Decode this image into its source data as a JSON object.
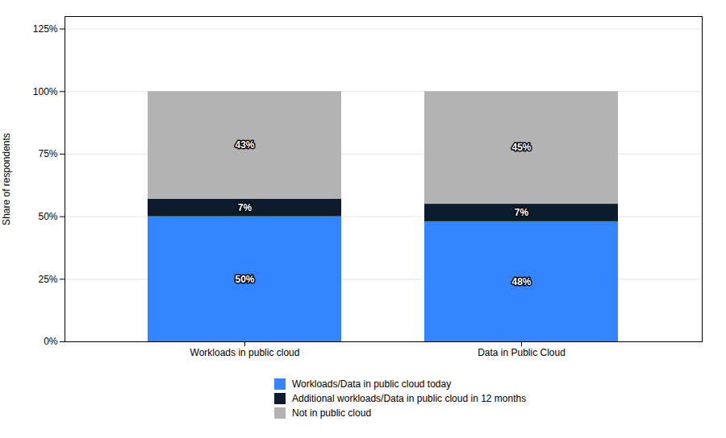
{
  "chart_data": {
    "type": "bar",
    "stacked": true,
    "categories": [
      "Workloads in public cloud",
      "Data in Public Cloud"
    ],
    "series": [
      {
        "name": "Workloads/Data in public cloud today",
        "color": "#3385ff",
        "values": [
          50,
          48
        ],
        "value_labels": [
          "50%",
          "48%"
        ]
      },
      {
        "name": "Additional workloads/Data in public cloud in 12 months",
        "color": "#0d1b2e",
        "values": [
          7,
          7
        ],
        "value_labels": [
          "7%",
          "7%"
        ]
      },
      {
        "name": "Not in public cloud",
        "color": "#b3b3b3",
        "values": [
          43,
          45
        ],
        "value_labels": [
          "43%",
          "45%"
        ]
      }
    ],
    "ylabel": "Share of respondents",
    "ylim": [
      0,
      130
    ],
    "yticks": [
      {
        "value": 0,
        "label": "0%"
      },
      {
        "value": 25,
        "label": "25%"
      },
      {
        "value": 50,
        "label": "50%"
      },
      {
        "value": 75,
        "label": "75%"
      },
      {
        "value": 100,
        "label": "100%"
      },
      {
        "value": 125,
        "label": "125%"
      }
    ],
    "grid": true,
    "data_labels": true,
    "legend": "bottom"
  }
}
